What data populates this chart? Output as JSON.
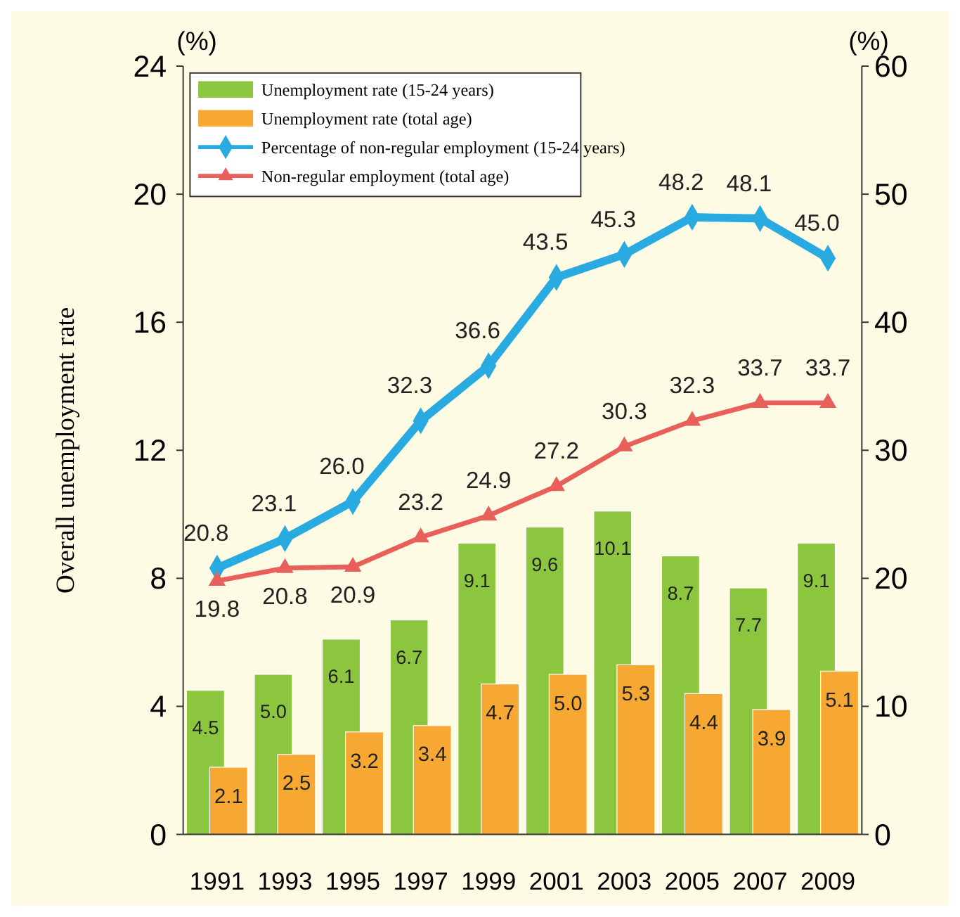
{
  "chart_data": {
    "type": "bar",
    "ylabel": "Overall unemployment rate",
    "y2label": "(%)",
    "annotations": [
      "(%)"
    ],
    "categories": [
      "1991",
      "1993",
      "1995",
      "1997",
      "1999",
      "2001",
      "2003",
      "2005",
      "2007",
      "2009"
    ],
    "ylim": [
      0,
      24
    ],
    "yticks": [
      0,
      4,
      8,
      12,
      16,
      20,
      24
    ],
    "y2lim": [
      0,
      60
    ],
    "y2ticks": [
      0,
      10,
      20,
      30,
      40,
      50,
      60
    ],
    "data_labels": true,
    "grid": false,
    "legend": "top left",
    "series": [
      {
        "name": "Unemployment rate (15-24 years)",
        "color": "#8cc63f",
        "values": [
          4.5,
          5.0,
          6.1,
          6.7,
          9.1,
          9.6,
          10.1,
          8.7,
          7.7,
          9.1
        ],
        "value_labels": [
          "4.5",
          "5.0",
          "6.1",
          "6.7",
          "9.1",
          "9.6",
          "10.1",
          "8.7",
          "7.7",
          "9.1"
        ]
      },
      {
        "name": "Unemployment rate (total age)",
        "color": "#f7a833",
        "values": [
          2.1,
          2.5,
          3.2,
          3.4,
          4.7,
          5.0,
          5.3,
          4.4,
          3.9,
          5.1
        ],
        "value_labels": [
          "2.1",
          "2.5",
          "3.2",
          "3.4",
          "4.7",
          "5.0",
          "5.3",
          "4.4",
          "3.9",
          "5.1"
        ]
      },
      {
        "name": "Percentage of non-regular employment (15-24 years)",
        "type": "line",
        "axis": "y2",
        "color": "#29aae1",
        "marker": "diamond",
        "values": [
          20.8,
          23.1,
          26.0,
          32.3,
          36.6,
          43.5,
          45.3,
          48.2,
          48.1,
          45.0
        ],
        "value_labels": [
          "20.8",
          "23.1",
          "26.0",
          "32.3",
          "36.6",
          "43.5",
          "45.3",
          "48.2",
          "48.1",
          "45.0"
        ]
      },
      {
        "name": "Non-regular employment (total age)",
        "type": "line",
        "axis": "y2",
        "color": "#e8605a",
        "marker": "triangle",
        "values": [
          19.8,
          20.8,
          20.9,
          23.2,
          24.9,
          27.2,
          30.3,
          32.3,
          33.7,
          33.7
        ]
      }
    ]
  }
}
